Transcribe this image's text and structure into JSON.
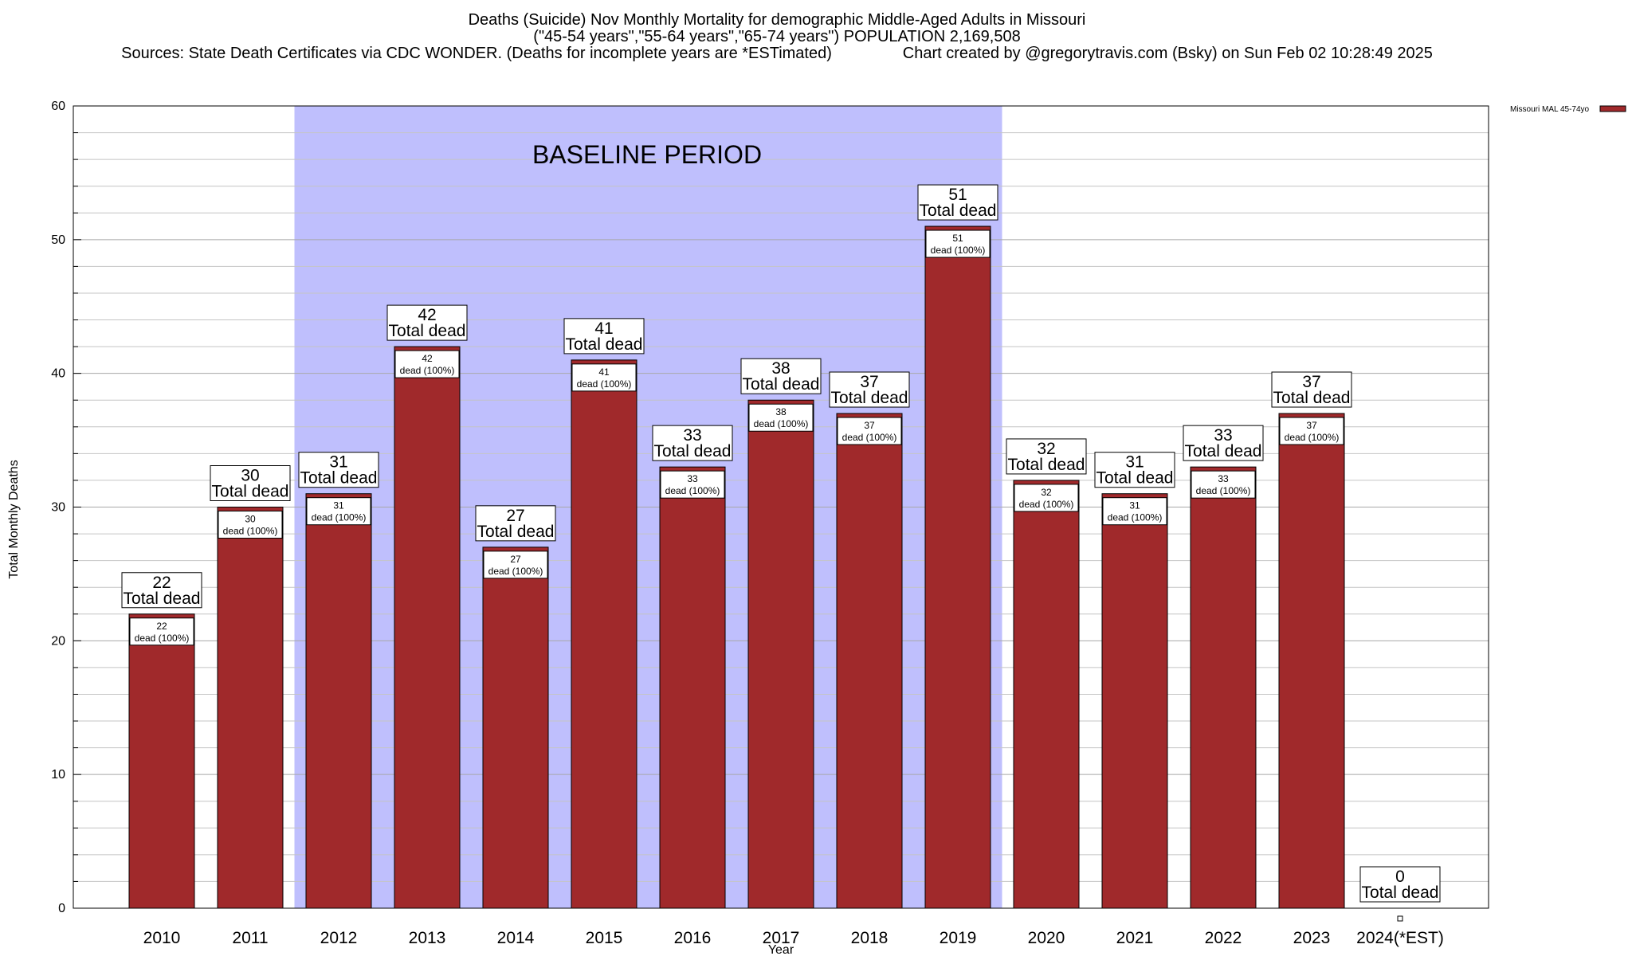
{
  "chart_data": {
    "type": "bar",
    "title_lines": [
      "Deaths (Suicide) Nov Monthly Mortality for demographic Middle-Aged Adults in Missouri",
      "(\"45-54 years\",\"55-64 years\",\"65-74 years\") POPULATION 2,169,508",
      "Sources: State Death Certificates via CDC WONDER. (Deaths for incomplete years are *ESTimated)                Chart created by @gregorytravis.com (Bsky) on Sun Feb 02 10:28:49 2025"
    ],
    "xlabel": "Year",
    "ylabel": "Total Monthly Deaths",
    "ylim": [
      0,
      60
    ],
    "yticks": [
      0,
      10,
      20,
      30,
      40,
      50,
      60
    ],
    "grid": true,
    "categories": [
      "2010",
      "2011",
      "2012",
      "2013",
      "2014",
      "2015",
      "2016",
      "2017",
      "2018",
      "2019",
      "2020",
      "2021",
      "2022",
      "2023",
      "2024(*EST)"
    ],
    "series": [
      {
        "name": "Missouri MAL 45-74yo",
        "color": "#a0292b",
        "values": [
          22,
          30,
          31,
          42,
          27,
          41,
          33,
          38,
          37,
          51,
          32,
          31,
          33,
          37,
          0
        ]
      }
    ],
    "total_label_suffix": "Total dead",
    "inner_label_suffix": "dead (100%)",
    "baseline_period": {
      "label": "BASELINE PERIOD",
      "start": "2012",
      "end": "2019",
      "color": "#bfbffd"
    },
    "legend_position": "top-right"
  }
}
